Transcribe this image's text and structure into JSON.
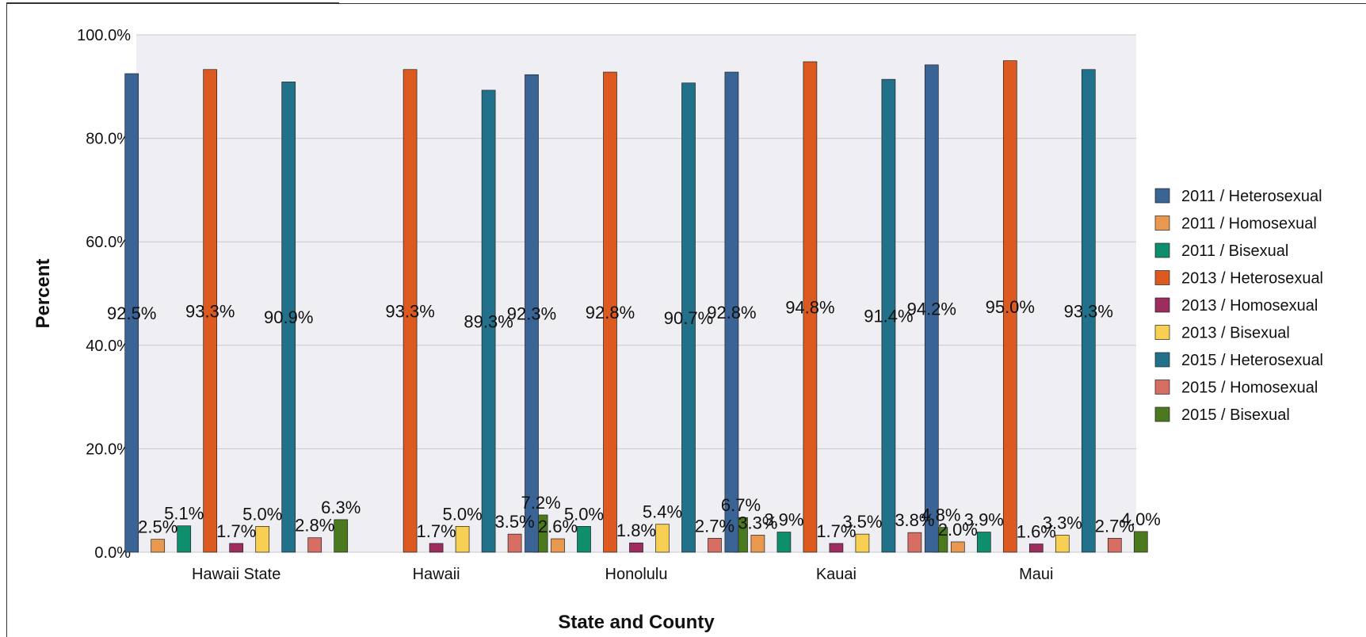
{
  "chart_data": {
    "type": "bar",
    "xlabel": "State and County",
    "ylabel": "Percent",
    "ylim": [
      0,
      100
    ],
    "yticks": [
      "0.0%",
      "20.0%",
      "40.0%",
      "60.0%",
      "80.0%",
      "100.0%"
    ],
    "ytick_values": [
      0,
      20,
      40,
      60,
      80,
      100
    ],
    "grid": true,
    "legend_position": "right",
    "categories": [
      "Hawaii State",
      "Hawaii",
      "Honolulu",
      "Kauai",
      "Maui"
    ],
    "series": [
      {
        "name": "2011 / Heterosexual",
        "color": "#3a6495",
        "values": [
          92.5,
          null,
          92.3,
          92.8,
          94.2
        ]
      },
      {
        "name": "2011 / Homosexual",
        "color": "#e8994f",
        "values": [
          2.5,
          null,
          2.6,
          3.3,
          2.0
        ]
      },
      {
        "name": "2011 / Bisexual",
        "color": "#0e8e6c",
        "values": [
          5.1,
          null,
          5.0,
          3.9,
          3.9
        ]
      },
      {
        "name": "2013 / Heterosexual",
        "color": "#dc5a20",
        "values": [
          93.3,
          93.3,
          92.8,
          94.8,
          95.0
        ]
      },
      {
        "name": "2013 / Homosexual",
        "color": "#9c2d5e",
        "values": [
          1.7,
          1.7,
          1.8,
          1.7,
          1.6
        ]
      },
      {
        "name": "2013 / Bisexual",
        "color": "#f7cf52",
        "values": [
          5.0,
          5.0,
          5.4,
          3.5,
          3.3
        ]
      },
      {
        "name": "2015 / Heterosexual",
        "color": "#22718a",
        "values": [
          90.9,
          89.3,
          90.7,
          91.4,
          93.3
        ]
      },
      {
        "name": "2015 / Homosexual",
        "color": "#d66e64",
        "values": [
          2.8,
          3.5,
          2.7,
          3.8,
          2.7
        ]
      },
      {
        "name": "2015 / Bisexual",
        "color": "#4a7a1d",
        "values": [
          6.3,
          7.2,
          6.7,
          4.8,
          4.0
        ]
      }
    ]
  },
  "colors": {
    "plot_background": "#eeeef3",
    "gridline": "#c8c8d0"
  }
}
